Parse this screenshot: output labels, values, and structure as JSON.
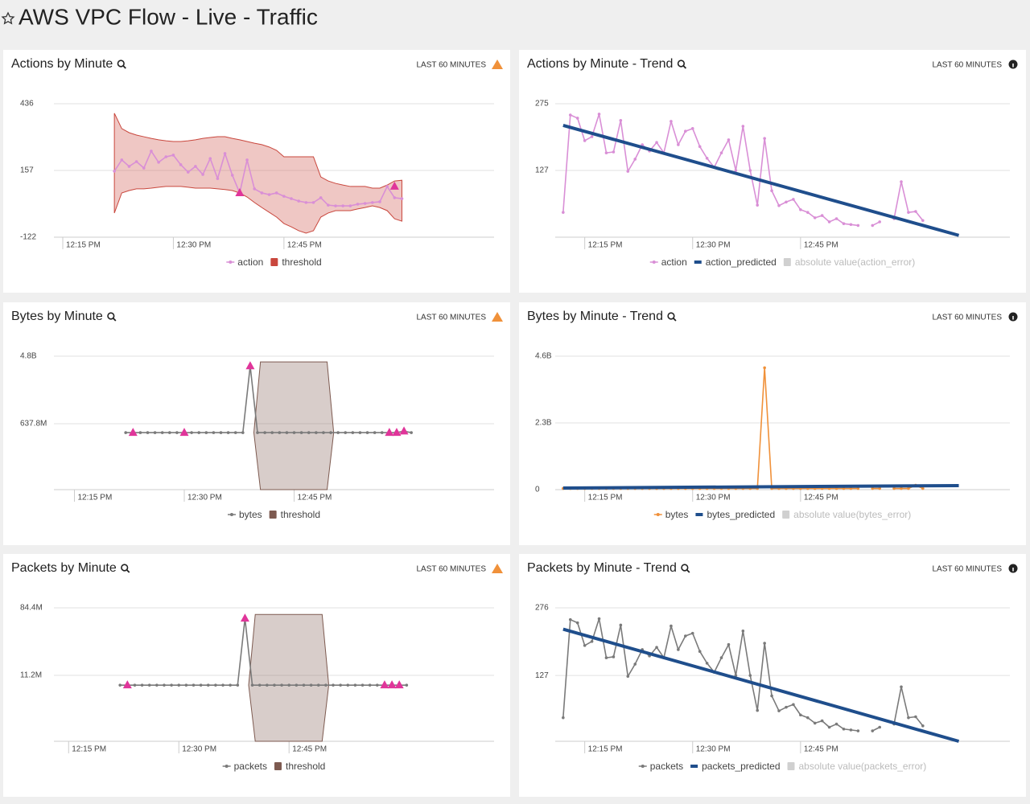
{
  "title": "AWS VPC Flow - Live - Traffic",
  "chart_data": [
    {
      "type": "anomaly",
      "title": "Actions by Minute",
      "badge": "LAST 60 MINUTES",
      "ylim": [
        -122,
        436
      ],
      "yticks": [
        -122,
        157,
        436
      ],
      "xlim": [
        13.8,
        73.5
      ],
      "xticks": [
        {
          "value": 15,
          "label": "12:15 PM"
        },
        {
          "value": 30,
          "label": "12:30 PM"
        },
        {
          "value": 45,
          "label": "12:45 PM"
        }
      ],
      "x": [
        22,
        23,
        24,
        25,
        26,
        27,
        28,
        29,
        30,
        31,
        32,
        33,
        34,
        35,
        36,
        37,
        38,
        39,
        40,
        41,
        42,
        43,
        44,
        45,
        46,
        47,
        48,
        49,
        50,
        51,
        52,
        53,
        54,
        55,
        56,
        57,
        58,
        59,
        60,
        61
      ],
      "series": [
        {
          "name": "action",
          "type": "line",
          "color": "#d98fd6",
          "values": [
            154,
            201,
            174,
            194,
            167,
            238,
            191,
            214,
            221,
            181,
            150,
            174,
            140,
            207,
            123,
            228,
            137,
            63,
            201,
            80,
            63,
            56,
            63,
            49,
            39,
            29,
            23,
            23,
            43,
            12,
            9,
            9,
            9,
            16,
            19,
            23,
            26,
            90,
            43,
            39
          ]
        },
        {
          "name": "threshold",
          "type": "band",
          "color": "#c9473d",
          "upper": [
            396,
            332,
            315,
            305,
            298,
            291,
            285,
            281,
            278,
            278,
            281,
            285,
            291,
            295,
            298,
            298,
            291,
            285,
            278,
            271,
            265,
            255,
            241,
            214,
            214,
            214,
            214,
            214,
            130,
            113,
            103,
            96,
            90,
            90,
            90,
            83,
            83,
            96,
            113,
            116
          ],
          "lower": [
            -21,
            63,
            73,
            80,
            80,
            83,
            87,
            90,
            90,
            90,
            87,
            83,
            83,
            83,
            80,
            77,
            73,
            63,
            46,
            23,
            2,
            -18,
            -38,
            -65,
            -79,
            -95,
            -105,
            -95,
            -38,
            -21,
            -11,
            -11,
            -11,
            -4,
            2,
            9,
            2,
            -11,
            -45,
            -55
          ]
        }
      ],
      "anomalies": {
        "color": "#e0359a",
        "x": [
          39,
          60
        ],
        "values": [
          63,
          90
        ]
      }
    },
    {
      "type": "trend",
      "title": "Actions by Minute - Trend",
      "badge": "LAST 60 MINUTES",
      "ylim": [
        -21,
        275
      ],
      "yticks": [
        127,
        275
      ],
      "xlim": [
        10.9,
        74.1
      ],
      "xticks": [
        {
          "value": 15,
          "label": "12:15 PM"
        },
        {
          "value": 30,
          "label": "12:30 PM"
        },
        {
          "value": 45,
          "label": "12:45 PM"
        }
      ],
      "x": [
        12,
        13,
        14,
        15,
        16,
        17,
        18,
        19,
        20,
        21,
        22,
        23,
        24,
        25,
        26,
        27,
        28,
        29,
        30,
        31,
        32,
        33,
        34,
        35,
        36,
        37,
        38,
        39,
        40,
        41,
        42,
        43,
        44,
        45,
        46,
        47,
        48,
        49,
        50,
        51,
        52,
        53,
        54,
        55,
        56,
        57,
        58,
        59,
        60,
        61,
        62
      ],
      "series": [
        {
          "name": "action",
          "type": "line",
          "color": "#d98fd6",
          "values": [
            34,
            250,
            243,
            193,
            202,
            252,
            166,
            168,
            238,
            125,
            152,
            184,
            170,
            189,
            166,
            236,
            184,
            214,
            220,
            180,
            154,
            134,
            166,
            195,
            127,
            225,
            127,
            50,
            198,
            82,
            49,
            57,
            63,
            40,
            34,
            22,
            27,
            13,
            20,
            9,
            7,
            5,
            null,
            5,
            13,
            null,
            20,
            102,
            34,
            36,
            16
          ]
        },
        {
          "name": "action_predicted",
          "type": "trend",
          "color": "#1f4e8c",
          "x": [
            12,
            67
          ],
          "values": [
            227,
            -17
          ]
        },
        {
          "name": "absolute value(action_error)",
          "type": "band",
          "color": "#d0d0d0"
        }
      ]
    },
    {
      "type": "anomaly",
      "title": "Bytes by Minute",
      "badge": "LAST 60 MINUTES",
      "log": true,
      "ylim": [
        89000000,
        4800000000
      ],
      "yticks": [
        {
          "value": 637800000,
          "label": "637.8M"
        },
        {
          "value": 4800000000,
          "label": "4.8B"
        }
      ],
      "xlim": [
        12.2,
        72.3
      ],
      "xticks": [
        {
          "value": 15,
          "label": "12:15 PM"
        },
        {
          "value": 30,
          "label": "12:30 PM"
        },
        {
          "value": 45,
          "label": "12:45 PM"
        }
      ],
      "x": [
        22,
        23,
        24,
        25,
        26,
        27,
        28,
        29,
        30,
        31,
        32,
        33,
        34,
        35,
        36,
        37,
        38,
        39,
        40,
        41,
        42,
        43,
        44,
        45,
        46,
        47,
        48,
        49,
        50,
        51,
        52,
        53,
        54,
        55,
        56,
        57,
        58,
        59,
        60,
        61
      ],
      "series": [
        {
          "name": "bytes",
          "type": "line",
          "color": "#7a7a7a",
          "values": [
            489000000,
            489000000,
            489000000,
            489000000,
            489000000,
            489000000,
            489000000,
            489000000,
            489000000,
            489000000,
            489000000,
            489000000,
            489000000,
            489000000,
            489000000,
            489000000,
            489000000,
            3580000000,
            489000000,
            489000000,
            489000000,
            489000000,
            489000000,
            489000000,
            489000000,
            489000000,
            489000000,
            489000000,
            489000000,
            489000000,
            489000000,
            489000000,
            489000000,
            489000000,
            489000000,
            489000000,
            489000000,
            489000000,
            510000000,
            489000000
          ]
        },
        {
          "name": "threshold",
          "type": "band",
          "color": "#7d5a50",
          "x": [
            39.5,
            40.4,
            49.5,
            50.4
          ],
          "upper": [
            489000000,
            4050000000,
            4050000000,
            489000000
          ],
          "lower": [
            489000000,
            89000000,
            89000000,
            489000000
          ]
        }
      ],
      "anomalies": {
        "color": "#e0359a",
        "x": [
          23,
          30,
          39,
          58,
          59,
          60
        ],
        "values": [
          489000000,
          489000000,
          3580000000,
          489000000,
          489000000,
          510000000
        ]
      }
    },
    {
      "type": "trend",
      "title": "Bytes by Minute - Trend",
      "badge": "LAST 60 MINUTES",
      "ylim": [
        0,
        4600000000
      ],
      "yticks": [
        0,
        {
          "value": 2300000000,
          "label": "2.3B"
        },
        {
          "value": 4600000000,
          "label": "4.6B"
        }
      ],
      "xlim": [
        10.9,
        74.1
      ],
      "xticks": [
        {
          "value": 15,
          "label": "12:15 PM"
        },
        {
          "value": 30,
          "label": "12:30 PM"
        },
        {
          "value": 45,
          "label": "12:45 PM"
        }
      ],
      "x": [
        12,
        13,
        14,
        15,
        16,
        17,
        18,
        19,
        20,
        21,
        22,
        23,
        24,
        25,
        26,
        27,
        28,
        29,
        30,
        31,
        32,
        33,
        34,
        35,
        36,
        37,
        38,
        39,
        40,
        41,
        42,
        43,
        44,
        45,
        46,
        47,
        48,
        49,
        50,
        51,
        52,
        53,
        54,
        55,
        56,
        57,
        58,
        59,
        60,
        61,
        62
      ],
      "series": [
        {
          "name": "bytes",
          "type": "line",
          "color": "#f0913a",
          "values": [
            40000000,
            40000000,
            40000000,
            40000000,
            40000000,
            40000000,
            40000000,
            40000000,
            40000000,
            40000000,
            40000000,
            40000000,
            40000000,
            40000000,
            40000000,
            40000000,
            40000000,
            40000000,
            40000000,
            40000000,
            40000000,
            40000000,
            40000000,
            40000000,
            40000000,
            40000000,
            40000000,
            40000000,
            4200000000,
            40000000,
            40000000,
            40000000,
            40000000,
            40000000,
            40000000,
            40000000,
            40000000,
            40000000,
            40000000,
            40000000,
            40000000,
            40000000,
            null,
            40000000,
            40000000,
            null,
            40000000,
            40000000,
            40000000,
            150000000,
            40000000
          ]
        },
        {
          "name": "bytes_predicted",
          "type": "trend",
          "color": "#1f4e8c",
          "x": [
            12,
            67
          ],
          "values": [
            56000000,
            140000000
          ]
        },
        {
          "name": "absolute value(bytes_error)",
          "type": "band",
          "color": "#d0d0d0"
        }
      ]
    },
    {
      "type": "anomaly",
      "title": "Packets by Minute",
      "badge": "LAST 60 MINUTES",
      "log": true,
      "ylim": [
        1560000,
        84400000
      ],
      "yticks": [
        {
          "value": 11200000,
          "label": "11.2M"
        },
        {
          "value": 84400000,
          "label": "84.4M"
        }
      ],
      "xlim": [
        13.0,
        72.9
      ],
      "xticks": [
        {
          "value": 15,
          "label": "12:15 PM"
        },
        {
          "value": 30,
          "label": "12:30 PM"
        },
        {
          "value": 45,
          "label": "12:45 PM"
        }
      ],
      "x": [
        22,
        23,
        24,
        25,
        26,
        27,
        28,
        29,
        30,
        31,
        32,
        33,
        34,
        35,
        36,
        37,
        38,
        39,
        40,
        41,
        42,
        43,
        44,
        45,
        46,
        47,
        48,
        49,
        50,
        51,
        52,
        53,
        54,
        55,
        56,
        57,
        58,
        59,
        60,
        61
      ],
      "series": [
        {
          "name": "packets",
          "type": "line",
          "color": "#7a7a7a",
          "values": [
            8360000,
            8360000,
            8360000,
            8360000,
            8360000,
            8360000,
            8360000,
            8360000,
            8360000,
            8360000,
            8360000,
            8360000,
            8360000,
            8360000,
            8360000,
            8360000,
            8360000,
            61500000,
            8360000,
            8360000,
            8360000,
            8360000,
            8360000,
            8360000,
            8360000,
            8360000,
            8360000,
            8360000,
            8360000,
            8360000,
            8360000,
            8360000,
            8360000,
            8360000,
            8360000,
            8360000,
            8360000,
            8360000,
            8360000,
            8360000
          ]
        },
        {
          "name": "threshold",
          "type": "band",
          "color": "#7d5a50",
          "x": [
            39.5,
            40.4,
            49.5,
            50.4
          ],
          "upper": [
            8360000,
            69300000,
            69300000,
            8360000
          ],
          "lower": [
            8360000,
            1560000,
            1560000,
            8360000
          ]
        }
      ],
      "anomalies": {
        "color": "#e0359a",
        "x": [
          23,
          39,
          58,
          59,
          60
        ],
        "values": [
          8360000,
          61500000,
          8360000,
          8360000,
          8360000
        ]
      }
    },
    {
      "type": "trend",
      "title": "Packets by Minute - Trend",
      "badge": "LAST 60 MINUTES",
      "ylim": [
        -18,
        276
      ],
      "yticks": [
        127,
        276
      ],
      "xlim": [
        10.9,
        74.1
      ],
      "xticks": [
        {
          "value": 15,
          "label": "12:15 PM"
        },
        {
          "value": 30,
          "label": "12:30 PM"
        },
        {
          "value": 45,
          "label": "12:45 PM"
        }
      ],
      "x": [
        12,
        13,
        14,
        15,
        16,
        17,
        18,
        19,
        20,
        21,
        22,
        23,
        24,
        25,
        26,
        27,
        28,
        29,
        30,
        31,
        32,
        33,
        34,
        35,
        36,
        37,
        38,
        39,
        40,
        41,
        42,
        43,
        44,
        45,
        46,
        47,
        48,
        49,
        50,
        51,
        52,
        53,
        54,
        55,
        56,
        57,
        58,
        59,
        60,
        61,
        62
      ],
      "series": [
        {
          "name": "packets",
          "type": "line",
          "color": "#7a7a7a",
          "values": [
            34,
            250,
            243,
            193,
            202,
            252,
            166,
            168,
            238,
            125,
            152,
            184,
            170,
            189,
            166,
            236,
            184,
            214,
            220,
            180,
            154,
            134,
            166,
            195,
            127,
            225,
            127,
            50,
            198,
            82,
            49,
            57,
            63,
            40,
            34,
            22,
            27,
            13,
            20,
            9,
            7,
            5,
            null,
            5,
            13,
            null,
            20,
            102,
            34,
            36,
            16
          ]
        },
        {
          "name": "packets_predicted",
          "type": "trend",
          "color": "#1f4e8c",
          "x": [
            12,
            67
          ],
          "values": [
            229,
            -18
          ]
        },
        {
          "name": "absolute value(packets_error)",
          "type": "band",
          "color": "#d0d0d0"
        }
      ]
    }
  ]
}
